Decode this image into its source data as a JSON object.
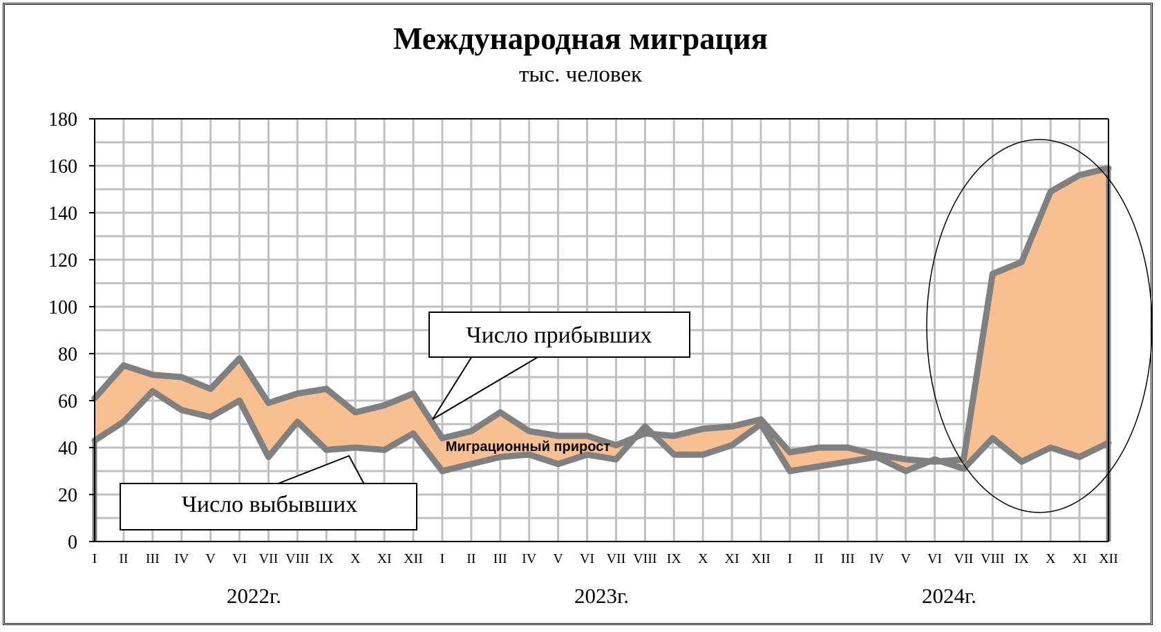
{
  "chart_data": {
    "type": "area",
    "title": "Международная миграция",
    "subtitle": "тыс. человек",
    "xlabel": "",
    "ylabel": "",
    "ylim": [
      0,
      180
    ],
    "yticks": [
      0,
      20,
      40,
      60,
      80,
      100,
      120,
      140,
      160,
      180
    ],
    "grid": true,
    "categories": [
      "I",
      "II",
      "III",
      "IV",
      "V",
      "VI",
      "VII",
      "VIII",
      "IX",
      "X",
      "XI",
      "XII",
      "I",
      "II",
      "III",
      "IV",
      "V",
      "VI",
      "VII",
      "VIII",
      "IX",
      "X",
      "XI",
      "XII",
      "I",
      "II",
      "III",
      "IV",
      "V",
      "VI",
      "VII",
      "VIII",
      "IX",
      "X",
      "XI",
      "XII"
    ],
    "years": [
      {
        "label": "2022г.",
        "start": 0,
        "end": 11
      },
      {
        "label": "2023г.",
        "start": 12,
        "end": 23
      },
      {
        "label": "2024г.",
        "start": 24,
        "end": 35
      }
    ],
    "series": [
      {
        "name": "Число прибывших",
        "values": [
          61,
          75,
          71,
          70,
          65,
          78,
          59,
          63,
          65,
          55,
          58,
          63,
          44,
          47,
          55,
          47,
          45,
          45,
          41,
          46,
          45,
          48,
          49,
          52,
          38,
          40,
          40,
          37,
          35,
          34,
          35,
          114,
          119,
          149,
          156,
          159
        ]
      },
      {
        "name": "Число выбывших",
        "values": [
          43,
          51,
          64,
          56,
          53,
          60,
          36,
          51,
          39,
          40,
          39,
          46,
          30,
          33,
          36,
          37,
          33,
          37,
          35,
          49,
          37,
          37,
          41,
          50,
          30,
          32,
          34,
          36,
          30,
          35,
          31,
          44,
          34,
          40,
          36,
          42
        ]
      }
    ],
    "fill_label": "Миграционный прирост",
    "colors": {
      "line": "#808080",
      "fill": "#f8c090",
      "grid": "#c0c0c0"
    },
    "annotations": [
      "ellipse around 2024 VII–XII"
    ]
  }
}
